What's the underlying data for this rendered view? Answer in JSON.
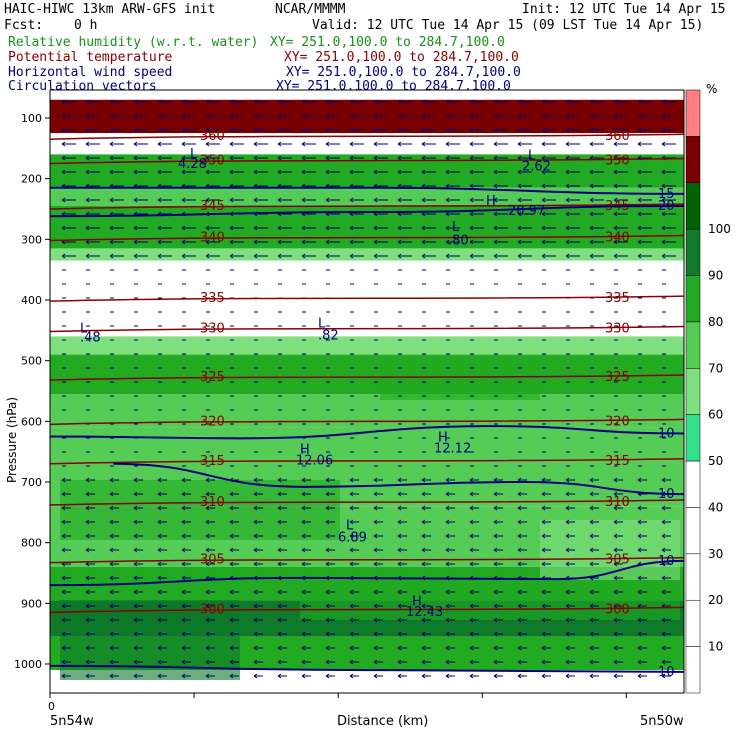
{
  "header": {
    "model": "HAIC-HIWC 13km ARW-GFS init",
    "org": "NCAR/MMMM",
    "init": "Init: 12 UTC Tue 14 Apr 15",
    "fcst_label": "Fcst:",
    "fcst_value": "0 h",
    "valid": "Valid: 12 UTC Tue 14 Apr 15 (09 LST Tue 14 Apr 15)"
  },
  "fields": [
    {
      "name": "Relative humidity (w.r.t. water)",
      "xy": "XY= 251.0,100.0 to 284.7,100.0",
      "color": "#1a8f1a"
    },
    {
      "name": "Potential temperature",
      "xy": "XY= 251.0,100.0 to 284.7,100.0",
      "color": "#8b0000"
    },
    {
      "name": "Horizontal wind speed",
      "xy": "XY= 251.0,100.0 to 284.7,100.0",
      "color": "#000080"
    },
    {
      "name": "Circulation vectors",
      "xy": "XY= 251.0,100.0 to 284.7,100.0",
      "color": "#000080"
    }
  ],
  "chart_data": {
    "type": "heatmap",
    "xlabel": "Distance (km)",
    "ylabel": "Pressure (hPa)",
    "x_tick_labels": [
      "0"
    ],
    "x_left_label": "5n54w",
    "x_right_label": "5n50w",
    "y_ticks": [
      100,
      200,
      300,
      400,
      500,
      600,
      700,
      800,
      900,
      1000
    ],
    "ylim": [
      1050,
      70
    ],
    "colorbar": {
      "unit": "%",
      "levels": [
        10,
        20,
        30,
        40,
        50,
        60,
        70,
        80,
        90,
        100
      ],
      "colors": [
        "#ffffff",
        "#ffffff",
        "#ffffff",
        "#ffffff",
        "#ffffff",
        "#33e08a",
        "#7fe07f",
        "#55cc55",
        "#22aa22",
        "#0e7a2a",
        "#006400",
        "#7a0000",
        "#ff8080"
      ]
    },
    "rh_bands": [
      {
        "p_top": 70,
        "p_bot": 125,
        "rh": 105
      },
      {
        "p_top": 125,
        "p_bot": 148,
        "rh": 30
      },
      {
        "p_top": 148,
        "p_bot": 160,
        "rh": 30
      },
      {
        "p_top": 160,
        "p_bot": 215,
        "rh": 85
      },
      {
        "p_top": 215,
        "p_bot": 245,
        "rh": 75
      },
      {
        "p_top": 245,
        "p_bot": 315,
        "rh": 85
      },
      {
        "p_top": 315,
        "p_bot": 335,
        "rh": 60
      },
      {
        "p_top": 335,
        "p_bot": 460,
        "rh": 20
      },
      {
        "p_top": 460,
        "p_bot": 490,
        "rh": 65
      },
      {
        "p_top": 490,
        "p_bot": 555,
        "rh": 85
      },
      {
        "p_top": 555,
        "p_bot": 610,
        "rh": 75
      },
      {
        "p_top": 610,
        "p_bot": 740,
        "rh": 70
      },
      {
        "p_top": 740,
        "p_bot": 840,
        "rh": 75
      },
      {
        "p_top": 840,
        "p_bot": 895,
        "rh": 85
      },
      {
        "p_top": 895,
        "p_bot": 955,
        "rh": 95
      },
      {
        "p_top": 955,
        "p_bot": 1010,
        "rh": 80
      },
      {
        "p_top": 1010,
        "p_bot": 1050,
        "rh": 0
      }
    ],
    "theta_contours": [
      {
        "label": "360",
        "p": 130
      },
      {
        "label": "350",
        "p": 170
      },
      {
        "label": "345",
        "p": 245
      },
      {
        "label": "340",
        "p": 297
      },
      {
        "label": "335",
        "p": 397
      },
      {
        "label": "330",
        "p": 447
      },
      {
        "label": "325",
        "p": 527
      },
      {
        "label": "320",
        "p": 600
      },
      {
        "label": "315",
        "p": 665
      },
      {
        "label": "310",
        "p": 733
      },
      {
        "label": "305",
        "p": 828
      },
      {
        "label": "300",
        "p": 910
      }
    ],
    "wind_contours": [
      {
        "label": "10",
        "points": [
          [
            0,
            625
          ],
          [
            0.3,
            628
          ],
          [
            0.7,
            608
          ],
          [
            1,
            620
          ]
        ]
      },
      {
        "label": "10",
        "points": [
          [
            0.1,
            670
          ],
          [
            0.4,
            708
          ],
          [
            0.75,
            700
          ],
          [
            1,
            720
          ]
        ]
      },
      {
        "label": "10",
        "points": [
          [
            0,
            870
          ],
          [
            0.4,
            858
          ],
          [
            0.8,
            860
          ],
          [
            1,
            830
          ]
        ]
      },
      {
        "label": "10",
        "points": [
          [
            0,
            1003
          ],
          [
            0.5,
            1010
          ],
          [
            1,
            1013
          ]
        ]
      },
      {
        "label": "15",
        "points": [
          [
            0,
            215
          ],
          [
            0.5,
            215
          ],
          [
            1,
            225
          ]
        ]
      },
      {
        "label": "20",
        "points": [
          [
            0,
            262
          ],
          [
            0.5,
            255
          ],
          [
            1,
            245
          ]
        ]
      }
    ],
    "annotations": [
      {
        "text": "L",
        "p": 445
      },
      {
        "text": ".48",
        "p": 460
      },
      {
        "text": "L",
        "p": 437
      },
      {
        "text": ".82",
        "p": 457
      },
      {
        "text": "L",
        "p": 278
      },
      {
        "text": ".80",
        "p": 300
      },
      {
        "text": "H",
        "p": 645
      },
      {
        "text": "12.06",
        "p": 663
      },
      {
        "text": "H",
        "p": 625
      },
      {
        "text": "12.12",
        "p": 643
      },
      {
        "text": "L",
        "p": 770
      },
      {
        "text": "6.89",
        "p": 790
      },
      {
        "text": "H",
        "p": 895
      },
      {
        "text": "12.43",
        "p": 913
      },
      {
        "text": "H",
        "p": 235
      },
      {
        "text": "20.97",
        "p": 252
      },
      {
        "text": "L",
        "p": 160
      },
      {
        "text": "2.62",
        "p": 178
      },
      {
        "text": "L",
        "p": 158
      },
      {
        "text": "4.28",
        "p": 174
      }
    ]
  }
}
